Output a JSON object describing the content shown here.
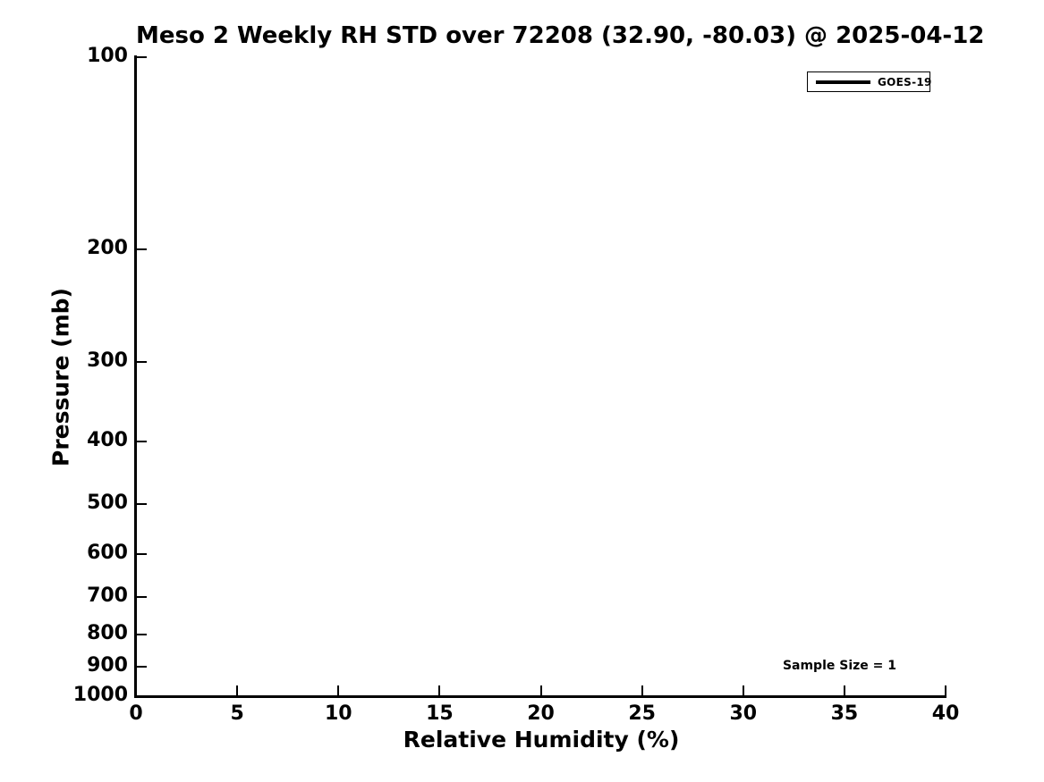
{
  "chart_data": {
    "type": "line",
    "title": "Meso 2 Weekly RH STD over 72208 (32.90, -80.03) @ 2025-04-12",
    "xlabel": "Relative Humidity (%)",
    "ylabel": "Pressure (mb)",
    "xlim": [
      0,
      40
    ],
    "ylim": [
      1000,
      100
    ],
    "xscale": "linear",
    "yscale": "log",
    "x_ticks": [
      0,
      5,
      10,
      15,
      20,
      25,
      30,
      35,
      40
    ],
    "y_ticks": [
      100,
      200,
      300,
      400,
      500,
      600,
      700,
      800,
      900,
      1000
    ],
    "grid": false,
    "axis_color": "#000000",
    "background_color": "#ffffff",
    "legend": {
      "position": "upper right",
      "entries": [
        {
          "label": "GOES-19",
          "color": "#000000",
          "style": "line"
        }
      ]
    },
    "annotations": [
      {
        "text": "Sample Size = 1",
        "position": "lower right"
      }
    ],
    "series": [
      {
        "name": "GOES-19",
        "color": "#000000",
        "points": []
      }
    ]
  }
}
